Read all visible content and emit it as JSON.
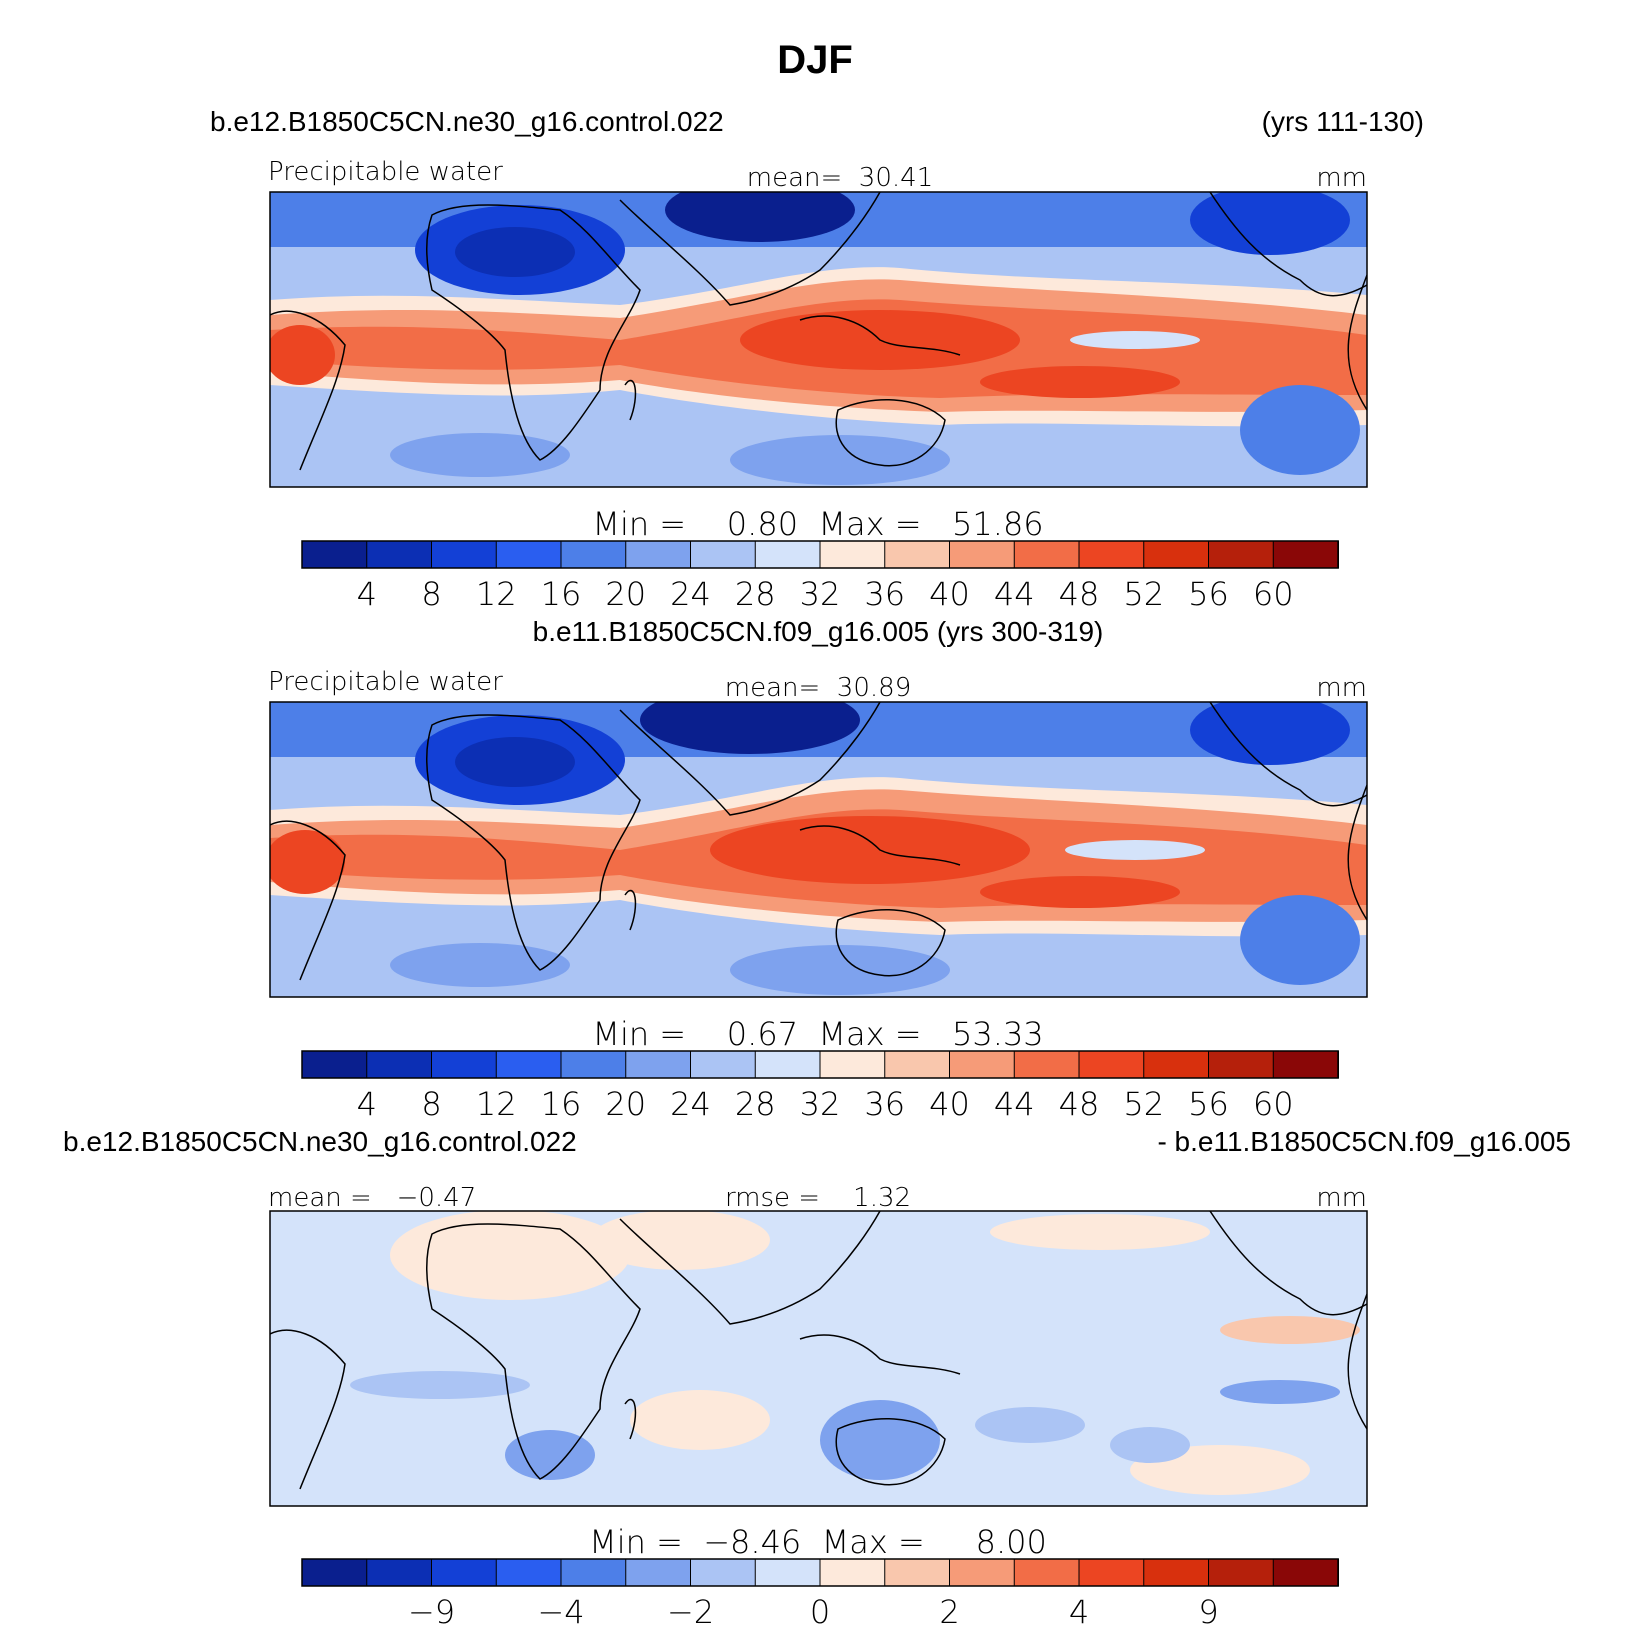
{
  "chart_data": {
    "type": "heatmap",
    "title": "DJF",
    "colors": [
      "#0a1f8e",
      "#0c2fb4",
      "#1340d6",
      "#2a5ef0",
      "#4d7fe8",
      "#7ea2ee",
      "#abc4f4",
      "#d4e3fa",
      "#fde9db",
      "#f9c7ad",
      "#f69b78",
      "#f26d47",
      "#ec4522",
      "#d8300d",
      "#b5200b",
      "#8a0707"
    ],
    "panels": [
      {
        "id": "top",
        "case_title": "b.e12.B1850C5CN.ne30_g16.control.022",
        "years": "(yrs 111-130)",
        "left_label": "Precipitable water",
        "center_label": "mean=  30.41",
        "units": "mm",
        "minmax": "Min =    0.80  Max =   51.86",
        "colorbar_ticks": [
          "4",
          "8",
          "12",
          "16",
          "20",
          "24",
          "28",
          "32",
          "36",
          "40",
          "44",
          "48",
          "52",
          "56",
          "60"
        ]
      },
      {
        "id": "middle",
        "case_title": "b.e11.B1850C5CN.f09_g16.005 (yrs 300-319)",
        "left_label": "Precipitable water",
        "center_label": "mean=  30.89",
        "units": "mm",
        "minmax": "Min =    0.67  Max =   53.33",
        "colorbar_ticks": [
          "4",
          "8",
          "12",
          "16",
          "20",
          "24",
          "28",
          "32",
          "36",
          "40",
          "44",
          "48",
          "52",
          "56",
          "60"
        ]
      },
      {
        "id": "bottom",
        "case_title_left": "b.e12.B1850C5CN.ne30_g16.control.022",
        "case_title_right": "- b.e11.B1850C5CN.f09_g16.005",
        "left_label": "mean =   −0.47",
        "center_label": "rmse =    1.32",
        "units": "mm",
        "minmax": "Min =  −8.46  Max =     8.00",
        "colorbar_ticks": [
          "−9",
          "−4",
          "−2",
          "0",
          "2",
          "4",
          "9"
        ]
      }
    ]
  }
}
